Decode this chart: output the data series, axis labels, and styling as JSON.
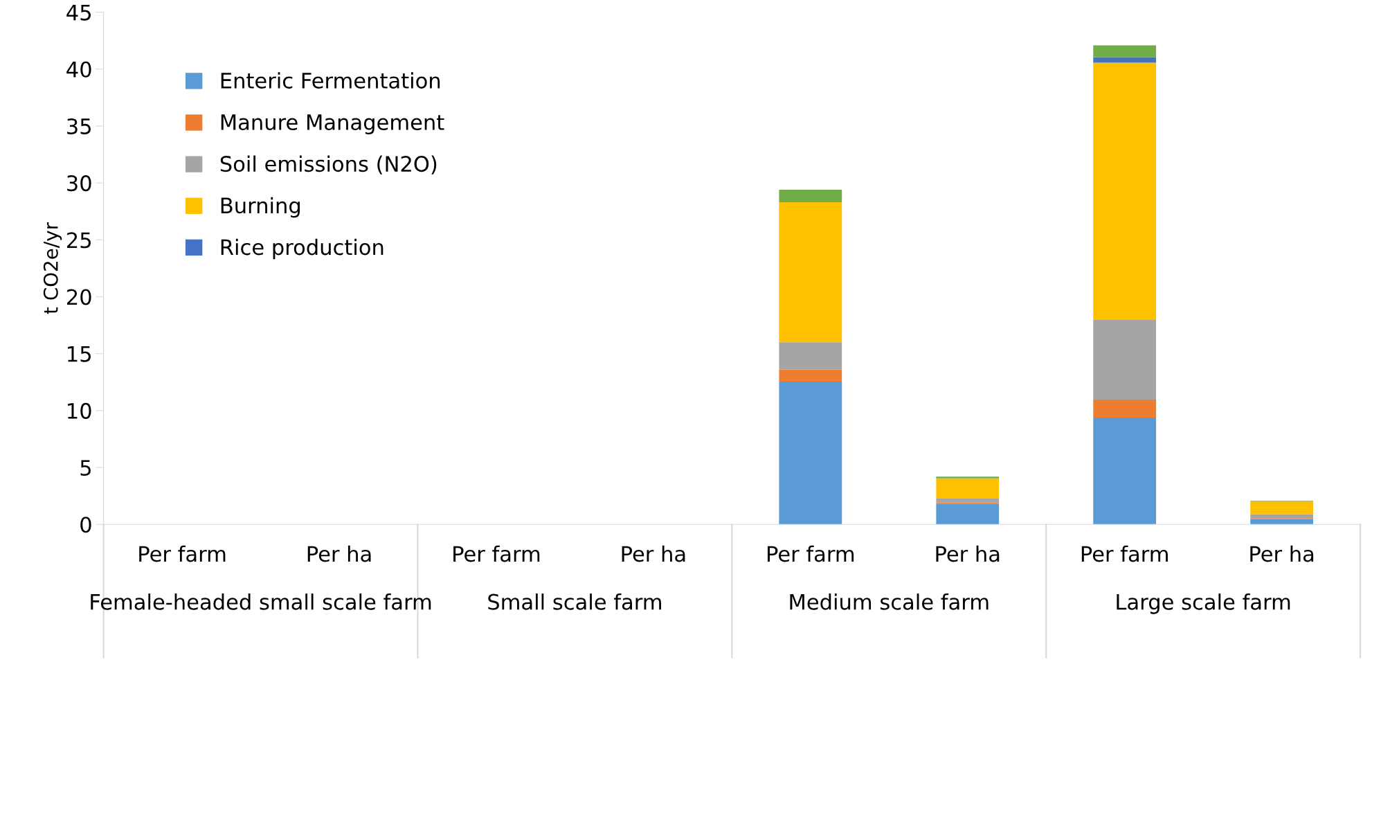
{
  "chart_data": {
    "type": "bar",
    "stacked": true,
    "ylabel": "t CO2e/yr",
    "categories": [
      "Per farm",
      "Per ha",
      "Per farm",
      "Per ha",
      "Per farm",
      "Per ha",
      "Per farm",
      "Per ha"
    ],
    "annotations": [
      "Female-headed small scale farm",
      "Small scale farm",
      "Medium scale farm",
      "Large scale farm"
    ],
    "series": [
      {
        "name": "Enteric Fermentation",
        "color": "#5b9bd5",
        "values": [
          0,
          0,
          0,
          0,
          12.55,
          1.79,
          9.38,
          0.45
        ]
      },
      {
        "name": "Manure Management",
        "color": "#ed7d31",
        "values": [
          0,
          0,
          0,
          0,
          1.05,
          0.14,
          1.58,
          0.09
        ]
      },
      {
        "name": "Soil emissions (N2O)",
        "color": "#a5a5a5",
        "values": [
          0,
          0,
          0,
          0,
          2.4,
          0.34,
          7.0,
          0.35
        ]
      },
      {
        "name": "Burning",
        "color": "#ffc000",
        "values": [
          0,
          0,
          0,
          0,
          12.3,
          1.77,
          22.6,
          1.11
        ]
      },
      {
        "name": "Rice production",
        "color": "#4472c4",
        "values": [
          0,
          0,
          0,
          0,
          0,
          0,
          0.49,
          0
        ]
      },
      {
        "color": "#70ad47",
        "values": [
          0,
          0,
          0,
          0,
          1.1,
          0.16,
          1.03,
          0.07
        ]
      }
    ],
    "ylim": [
      0,
      45
    ],
    "yticks": [
      0,
      5,
      10,
      15,
      20,
      25,
      30,
      35,
      40,
      45
    ],
    "grid": false,
    "legend": "top left"
  }
}
